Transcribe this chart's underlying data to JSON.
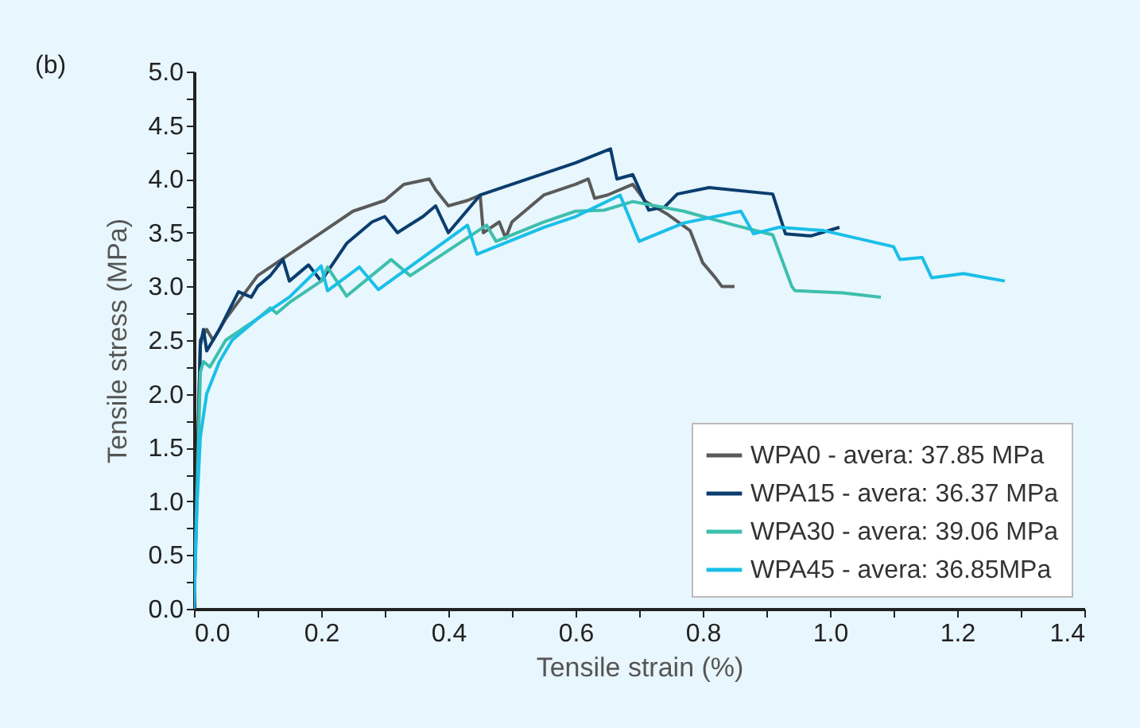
{
  "chart_data": {
    "type": "line",
    "xlabel": "Tensile strain (%)",
    "ylabel": "Tensile stress (MPa)",
    "annotations": [
      "(b)"
    ],
    "xlim": [
      0,
      1.4
    ],
    "ylim": [
      0,
      5
    ],
    "xticks": [
      {
        "value": 0,
        "label": "0.0"
      },
      {
        "value": 0.1,
        "label": null
      },
      0.2,
      {
        "value": 0.3,
        "label": null
      },
      0.4,
      {
        "value": 0.5,
        "label": null
      },
      0.6,
      {
        "value": 0.7,
        "label": null
      },
      0.8,
      {
        "value": 0.9,
        "label": null
      },
      {
        "value": 1,
        "label": "1.0"
      },
      {
        "value": 1.1,
        "label": null
      },
      1.2,
      {
        "value": 1.3,
        "label": null
      },
      1.4
    ],
    "yticks": [
      {
        "value": 0,
        "label": "0.0"
      },
      {
        "value": 0.25,
        "label": null
      },
      0.5,
      {
        "value": 0.75,
        "label": null
      },
      {
        "value": 1,
        "label": "1.0"
      },
      {
        "value": 1.25,
        "label": null
      },
      1.5,
      {
        "value": 1.75,
        "label": null
      },
      {
        "value": 2,
        "label": "2.0"
      },
      {
        "value": 2.25,
        "label": null
      },
      2.5,
      {
        "value": 2.75,
        "label": null
      },
      {
        "value": 3,
        "label": "3.0"
      },
      {
        "value": 3.25,
        "label": null
      },
      3.5,
      {
        "value": 3.75,
        "label": null
      },
      {
        "value": 4,
        "label": "4.0"
      },
      {
        "value": 4.25,
        "label": null
      },
      4.5,
      {
        "value": 4.75,
        "label": null
      },
      {
        "value": 5,
        "label": "5.0"
      }
    ],
    "grid": false,
    "legend": "bottom right",
    "marker": "none",
    "line_style": "solid",
    "series": [
      {
        "name": "WPA0 - avera: 37.85 MPa",
        "color": "#5a5a5a",
        "x": [
          0,
          0.01,
          0.02,
          0.03,
          0.05,
          0.1,
          0.15,
          0.2,
          0.25,
          0.3,
          0.33,
          0.37,
          0.38,
          0.4,
          0.43,
          0.45,
          0.455,
          0.48,
          0.49,
          0.5,
          0.55,
          0.6,
          0.62,
          0.63,
          0.65,
          0.69,
          0.71,
          0.745,
          0.78,
          0.8,
          0.82,
          0.83,
          0.85
        ],
        "values": [
          0,
          2.5,
          2.6,
          2.5,
          2.7,
          3.1,
          3.3,
          3.5,
          3.7,
          3.8,
          3.95,
          4.0,
          3.9,
          3.75,
          3.8,
          3.85,
          3.5,
          3.6,
          3.45,
          3.6,
          3.85,
          3.95,
          4.0,
          3.82,
          3.85,
          3.95,
          3.79,
          3.67,
          3.52,
          3.22,
          3.08,
          3.0,
          3.0
        ]
      },
      {
        "name": "WPA15 - avera: 36.37 MPa",
        "color": "#0b3d6e",
        "x": [
          0,
          0.01,
          0.015,
          0.02,
          0.04,
          0.07,
          0.09,
          0.1,
          0.12,
          0.14,
          0.15,
          0.18,
          0.2,
          0.24,
          0.28,
          0.3,
          0.32,
          0.36,
          0.38,
          0.4,
          0.45,
          0.5,
          0.55,
          0.6,
          0.655,
          0.665,
          0.69,
          0.715,
          0.74,
          0.76,
          0.81,
          0.91,
          0.93,
          0.97,
          1.015
        ],
        "values": [
          0,
          2.45,
          2.6,
          2.4,
          2.6,
          2.95,
          2.9,
          3.0,
          3.1,
          3.25,
          3.05,
          3.2,
          3.05,
          3.4,
          3.6,
          3.65,
          3.5,
          3.65,
          3.75,
          3.5,
          3.85,
          3.95,
          4.05,
          4.15,
          4.28,
          4.0,
          4.04,
          3.71,
          3.74,
          3.86,
          3.92,
          3.86,
          3.49,
          3.47,
          3.55
        ]
      },
      {
        "name": "WPA30 - avera: 39.06 MPa",
        "color": "#3dbfad",
        "x": [
          0,
          0.01,
          0.015,
          0.025,
          0.05,
          0.1,
          0.12,
          0.13,
          0.15,
          0.2,
          0.21,
          0.24,
          0.31,
          0.34,
          0.46,
          0.475,
          0.55,
          0.6,
          0.645,
          0.69,
          0.77,
          0.85,
          0.91,
          0.94,
          0.945,
          1.02,
          1.08
        ],
        "values": [
          0,
          2.2,
          2.3,
          2.25,
          2.5,
          2.7,
          2.8,
          2.75,
          2.85,
          3.05,
          3.18,
          2.91,
          3.25,
          3.1,
          3.57,
          3.42,
          3.6,
          3.7,
          3.71,
          3.79,
          3.7,
          3.57,
          3.48,
          3.0,
          2.96,
          2.94,
          2.9
        ]
      },
      {
        "name": "WPA45 - avera: 36.85MPa",
        "color": "#19bfe8",
        "x": [
          0,
          0.005,
          0.01,
          0.02,
          0.04,
          0.06,
          0.1,
          0.15,
          0.2,
          0.21,
          0.26,
          0.29,
          0.43,
          0.445,
          0.55,
          0.6,
          0.67,
          0.7,
          0.77,
          0.86,
          0.88,
          0.92,
          0.99,
          1.1,
          1.11,
          1.145,
          1.16,
          1.21,
          1.275
        ],
        "values": [
          0,
          1.0,
          1.6,
          2.0,
          2.3,
          2.5,
          2.7,
          2.9,
          3.19,
          2.96,
          3.18,
          2.97,
          3.57,
          3.3,
          3.55,
          3.65,
          3.85,
          3.42,
          3.59,
          3.7,
          3.49,
          3.55,
          3.52,
          3.37,
          3.25,
          3.27,
          3.08,
          3.12,
          3.05
        ]
      }
    ]
  }
}
